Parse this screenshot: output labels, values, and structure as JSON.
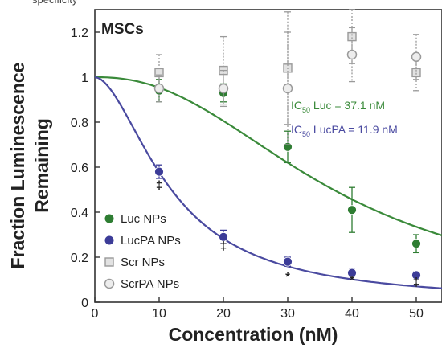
{
  "top_caption": "specificity",
  "chart_data": {
    "type": "scatter",
    "panel_label": "MSCs",
    "xlabel": "Concentration (nM)",
    "ylabel_line1": "Fraction Luminescence",
    "ylabel_line2": "Remaining",
    "xlim": [
      0,
      54
    ],
    "ylim": [
      0,
      1.3
    ],
    "x_ticks": [
      0,
      10,
      20,
      30,
      40,
      50
    ],
    "y_ticks": [
      0,
      0.2,
      0.4,
      0.6,
      0.8,
      1,
      1.2
    ],
    "y_tick_labels": [
      "0",
      "0.2",
      "0.4",
      "0.6",
      "0.8",
      "1",
      "1.2"
    ],
    "ic50_labels": [
      {
        "pre": "IC",
        "sub": "50",
        "post": " Luc = 37.1 nM",
        "color": "#3a8a3a"
      },
      {
        "pre": "IC",
        "sub": "50",
        "post": " LucPA = 11.9 nM",
        "color": "#4a4aa0"
      }
    ],
    "series": [
      {
        "name": "Luc NPs",
        "marker": "circle",
        "color": "#2e7d32",
        "x": [
          10,
          20,
          30,
          40,
          50
        ],
        "y": [
          0.94,
          0.93,
          0.69,
          0.41,
          0.26
        ],
        "err": [
          0.05,
          0.04,
          0.07,
          0.1,
          0.04
        ]
      },
      {
        "name": "LucPA NPs",
        "marker": "circle",
        "color": "#3c3c98",
        "x": [
          10,
          20,
          30,
          40,
          50
        ],
        "y": [
          0.58,
          0.29,
          0.18,
          0.13,
          0.12
        ],
        "err": [
          0.03,
          0.03,
          0.02,
          0.015,
          0.015
        ]
      },
      {
        "name": "Scr NPs",
        "marker": "square",
        "color": "#9a9a9a",
        "x": [
          10,
          20,
          30,
          40,
          50
        ],
        "y": [
          1.02,
          1.03,
          1.04,
          1.18,
          1.02
        ],
        "err": [
          0.08,
          0.15,
          0.25,
          0.12,
          0.08
        ]
      },
      {
        "name": "ScrPA NPs",
        "marker": "circle-open",
        "color": "#9a9a9a",
        "x": [
          10,
          20,
          30,
          40,
          50
        ],
        "y": [
          0.95,
          0.95,
          0.95,
          1.1,
          1.09
        ],
        "err": [
          0.06,
          0.08,
          0.25,
          0.12,
          0.1
        ]
      }
    ],
    "fits": [
      {
        "name": "Luc NPs fit",
        "color": "#3a8a3a",
        "ic50": 37.1,
        "hill": 2.3
      },
      {
        "name": "LucPA NPs fit",
        "color": "#4a4aa0",
        "ic50": 11.9,
        "hill": 1.8
      }
    ],
    "annotations": [
      {
        "text": "‡",
        "x": 10,
        "y": 0.52
      },
      {
        "text": "‡",
        "x": 20,
        "y": 0.25
      },
      {
        "text": "*",
        "x": 30,
        "y": 0.115
      },
      {
        "text": "*",
        "x": 40,
        "y": 0.1
      },
      {
        "text": "‡",
        "x": 50,
        "y": 0.09
      }
    ],
    "legend_position": "bottom-left"
  }
}
